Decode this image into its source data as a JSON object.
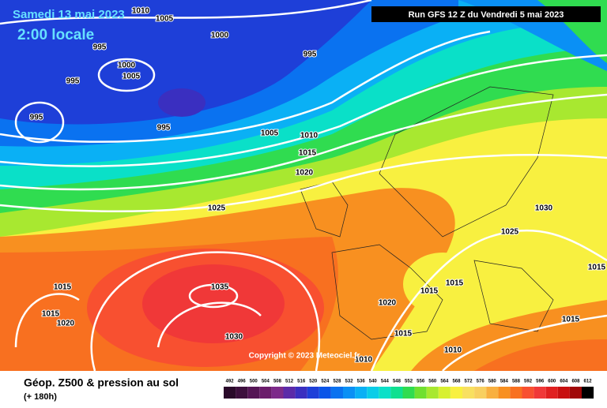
{
  "header": {
    "date": "Samedi 13 mai 2023",
    "time": "2:00 locale",
    "run": "Run GFS 12 Z du Vendredi 5 mai 2023"
  },
  "isobar_labels": [
    "1010",
    "1005",
    "1000",
    "995",
    "995",
    "1000",
    "1005",
    "995",
    "995",
    "995",
    "1005",
    "1010",
    "1015",
    "1020",
    "1025",
    "1030",
    "1025",
    "1015",
    "1015",
    "1035",
    "1015",
    "1020",
    "1015",
    "1020",
    "1015",
    "1015",
    "1030",
    "1015",
    "1010",
    "1010"
  ],
  "copyright": "Copyright © 2023 Meteociel.fr",
  "footer": {
    "title": "Géop. Z500 & pression au sol",
    "lead": "(+ 180h)"
  },
  "legend": {
    "labels": [
      "492",
      "496",
      "500",
      "504",
      "508",
      "512",
      "516",
      "520",
      "524",
      "528",
      "532",
      "536",
      "540",
      "544",
      "548",
      "552",
      "556",
      "560",
      "564",
      "568",
      "572",
      "576",
      "580",
      "584",
      "588",
      "592",
      "596",
      "600",
      "604",
      "608",
      "612"
    ],
    "colors": [
      "#2a0a2a",
      "#3d0f3d",
      "#551555",
      "#6b1c6b",
      "#7d2a8a",
      "#5b2aa8",
      "#3a2fc0",
      "#1e3fd8",
      "#0a55e8",
      "#0a72f0",
      "#0a90f5",
      "#0ab0f5",
      "#0acde8",
      "#0ae0c8",
      "#10e090",
      "#30dc50",
      "#70e030",
      "#a8e830",
      "#d8f030",
      "#f8f040",
      "#f8e060",
      "#f8d060",
      "#f8b040",
      "#f89020",
      "#f87020",
      "#f85030",
      "#f03838",
      "#e02020",
      "#c81010",
      "#a00808",
      "#000000"
    ]
  }
}
